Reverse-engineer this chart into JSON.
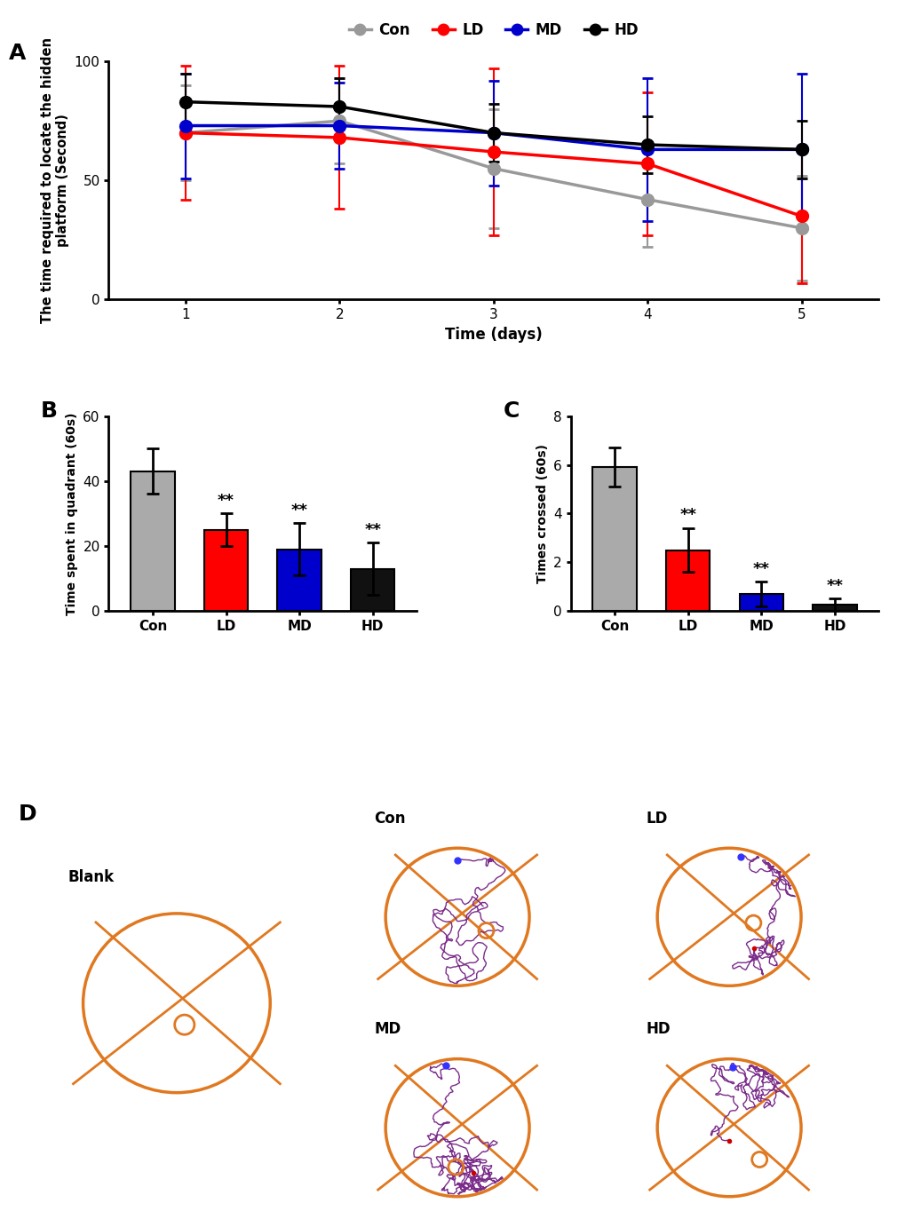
{
  "panel_A": {
    "days": [
      1,
      2,
      3,
      4,
      5
    ],
    "con_mean": [
      70,
      75,
      55,
      42,
      30
    ],
    "con_err": [
      20,
      18,
      25,
      20,
      22
    ],
    "ld_mean": [
      70,
      68,
      62,
      57,
      35
    ],
    "ld_err": [
      28,
      30,
      35,
      30,
      28
    ],
    "md_mean": [
      73,
      73,
      70,
      63,
      63
    ],
    "md_err": [
      22,
      18,
      22,
      30,
      32
    ],
    "hd_mean": [
      83,
      81,
      70,
      65,
      63
    ],
    "hd_err": [
      12,
      12,
      12,
      12,
      12
    ],
    "con_color": "#999999",
    "ld_color": "#ff0000",
    "md_color": "#0000cc",
    "hd_color": "#000000",
    "ylabel": "The time required to locate the hidden\nplatform (Second)",
    "xlabel": "Time (days)",
    "ylim": [
      0,
      100
    ],
    "yticks": [
      0,
      50,
      100
    ]
  },
  "panel_B": {
    "categories": [
      "Con",
      "LD",
      "MD",
      "HD"
    ],
    "means": [
      43,
      25,
      19,
      13
    ],
    "errors": [
      7,
      5,
      8,
      8
    ],
    "colors": [
      "#aaaaaa",
      "#ff0000",
      "#0000cc",
      "#111111"
    ],
    "ylabel": "Time spent in quadrant (60s)",
    "ylim": [
      0,
      60
    ],
    "yticks": [
      0,
      20,
      40,
      60
    ],
    "sig_labels": [
      "",
      "**",
      "**",
      "**"
    ]
  },
  "panel_C": {
    "categories": [
      "Con",
      "LD",
      "MD",
      "HD"
    ],
    "means": [
      5.9,
      2.5,
      0.7,
      0.25
    ],
    "errors": [
      0.8,
      0.9,
      0.5,
      0.25
    ],
    "colors": [
      "#aaaaaa",
      "#ff0000",
      "#0000cc",
      "#111111"
    ],
    "ylabel": "Times crossed (60s)",
    "ylim": [
      0,
      8
    ],
    "yticks": [
      0,
      2,
      4,
      6,
      8
    ],
    "sig_labels": [
      "",
      "**",
      "**",
      "**"
    ]
  },
  "panel_D": {
    "bg_color": "#faf5e4",
    "ellipse_color": "#e07820",
    "line_color": "#e07820",
    "track_color": "#7b2d8b",
    "small_circle_color": "#e07820"
  }
}
